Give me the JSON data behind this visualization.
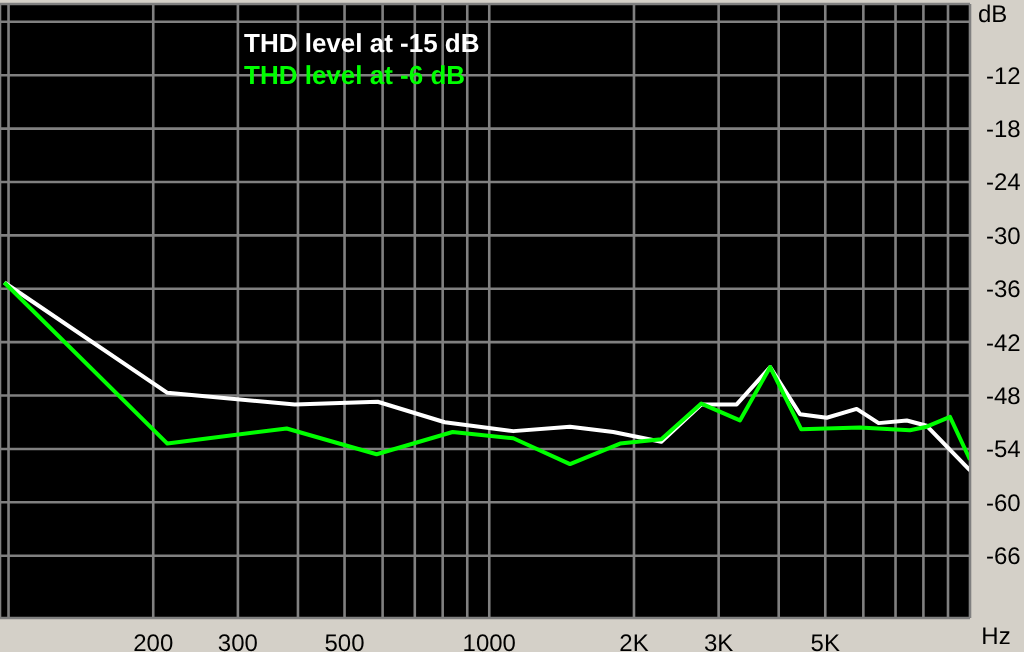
{
  "chart_data": {
    "type": "line",
    "xlabel": "Hz",
    "ylabel": "dB",
    "log": "x",
    "grid": true,
    "legend": "top left",
    "marker": "none",
    "line_style": "solid",
    "xlim": [
      96,
      10000
    ],
    "ylim": [
      -73,
      -4
    ],
    "xticks": [
      {
        "value": 100,
        "label": null
      },
      200,
      300,
      {
        "value": 400,
        "label": null
      },
      500,
      {
        "value": 600,
        "label": null
      },
      {
        "value": 700,
        "label": null
      },
      {
        "value": 800,
        "label": null
      },
      {
        "value": 900,
        "label": null
      },
      1000,
      {
        "value": 2000,
        "label": "2K"
      },
      {
        "value": 3000,
        "label": "3K"
      },
      {
        "value": 4000,
        "label": null
      },
      {
        "value": 5000,
        "label": "5K"
      },
      {
        "value": 6000,
        "label": null
      },
      {
        "value": 7000,
        "label": null
      },
      {
        "value": 8000,
        "label": null
      },
      {
        "value": 9000,
        "label": null
      },
      {
        "value": 10000,
        "label": null
      }
    ],
    "yticks": [
      {
        "value": -6,
        "label": null
      },
      -12,
      -18,
      -24,
      -30,
      -36,
      -42,
      -48,
      -54,
      -60,
      -66
    ],
    "series": [
      {
        "name": "THD level at -15 dB",
        "color": "#ffffff",
        "x": [
          98,
          214,
          394,
          586,
          808,
          1122,
          1472,
          1811,
          2280,
          2761,
          3271,
          3840,
          4431,
          5035,
          5810,
          6456,
          7388,
          8128,
          10000
        ],
        "values": [
          -35.3,
          -47.7,
          -49.0,
          -48.7,
          -51.0,
          -52.0,
          -51.5,
          -52.1,
          -53.2,
          -49.0,
          -49.0,
          -44.8,
          -50.1,
          -50.5,
          -49.5,
          -51.1,
          -50.8,
          -51.4,
          -56.4
        ]
      },
      {
        "name": "THD level at -6 dB",
        "color": "#00ff00",
        "x": [
          98,
          214,
          379,
          583,
          839,
          1122,
          1472,
          1871,
          2280,
          2761,
          3322,
          3840,
          4456,
          5901,
          7499,
          8128,
          9085,
          10000
        ],
        "values": [
          -35.3,
          -53.4,
          -51.7,
          -54.6,
          -52.1,
          -52.8,
          -55.7,
          -53.4,
          -52.9,
          -48.9,
          -50.8,
          -44.8,
          -51.8,
          -51.6,
          -51.9,
          -51.5,
          -50.4,
          -55.2
        ]
      }
    ]
  }
}
